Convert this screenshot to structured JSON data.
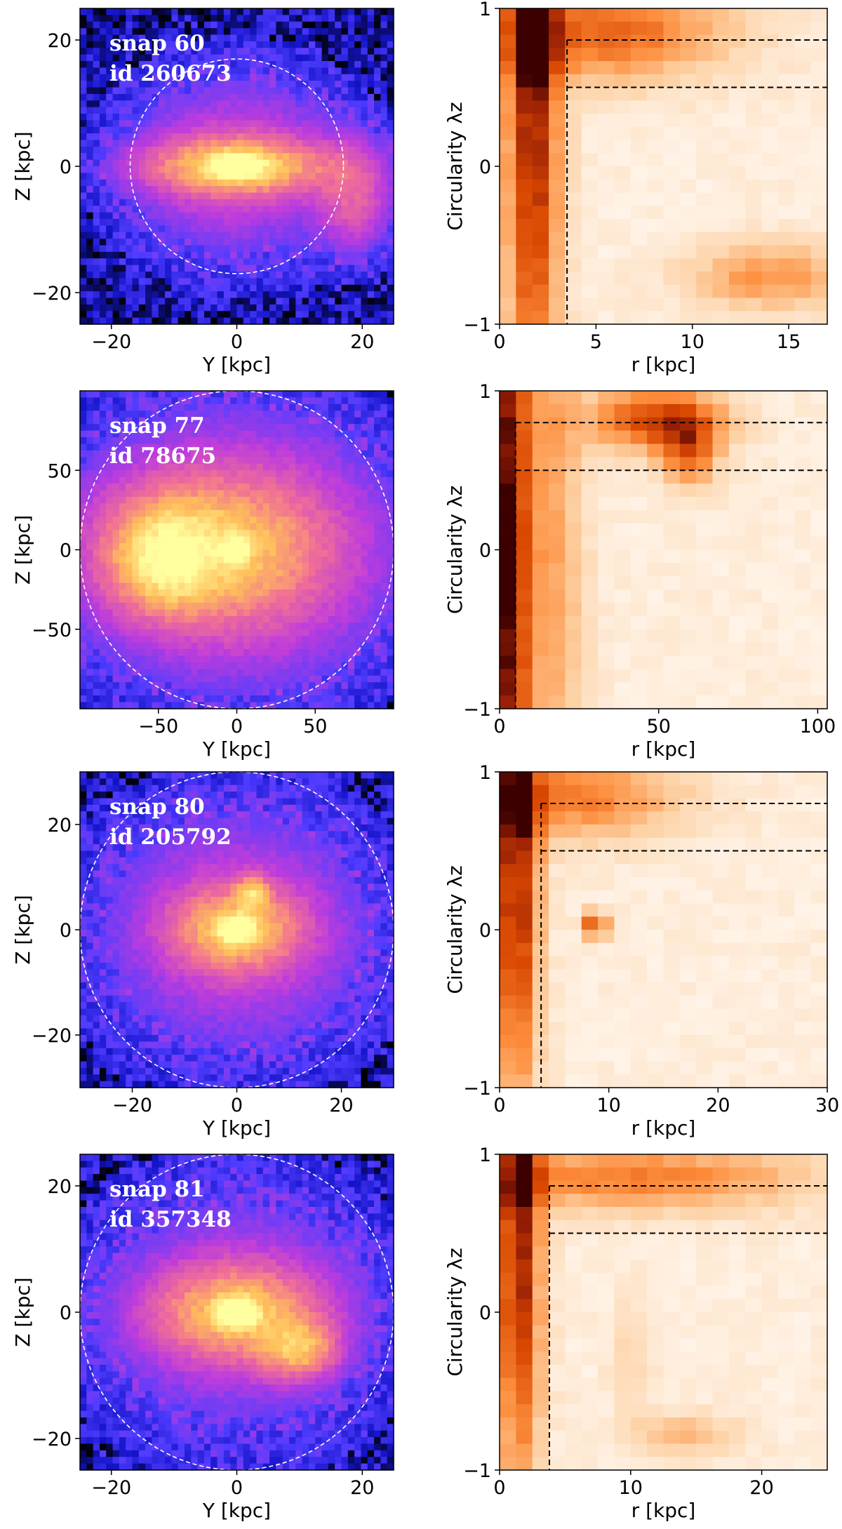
{
  "chart_data": [
    {
      "type": "heatmap",
      "panel": "projection",
      "overlay": [
        "snap 60",
        "id 260673"
      ],
      "xlabel": "Y [kpc]",
      "ylabel": "Z [kpc]",
      "xlim": [
        -25,
        25
      ],
      "ylim": [
        -25,
        25
      ],
      "xticks": [
        -20,
        0,
        20
      ],
      "yticks": [
        -20,
        0,
        20
      ],
      "xtick_labels": [
        "−20",
        "0",
        "20"
      ],
      "ytick_labels": [
        "−20",
        "0",
        "20"
      ],
      "aperture_radius": 17,
      "colormap": "gnuplot2",
      "features": [
        {
          "kind": "core",
          "x": 0,
          "y": 0,
          "sx": 2.5,
          "sy": 1.2,
          "amp": 1.0
        },
        {
          "kind": "disk",
          "x": 0,
          "y": 0,
          "sx": 10,
          "sy": 3,
          "amp": 0.55
        },
        {
          "kind": "halo",
          "x": 0,
          "y": 0,
          "sx": 12,
          "sy": 10,
          "amp": 0.25
        },
        {
          "kind": "stream",
          "x": 19,
          "y": -5,
          "sx": 4,
          "sy": 6,
          "amp": 0.28
        }
      ]
    },
    {
      "type": "heatmap",
      "panel": "circularity",
      "xlabel": "r [kpc]",
      "ylabel": "Circularity λz",
      "xlim": [
        0,
        17
      ],
      "ylim": [
        -1,
        1
      ],
      "xticks": [
        0,
        5,
        10,
        15
      ],
      "yticks": [
        -1,
        0,
        1
      ],
      "xtick_labels": [
        "0",
        "5",
        "10",
        "15"
      ],
      "ytick_labels": [
        "−1",
        "0",
        "1"
      ],
      "r_cut": 3.5,
      "lambda_cuts": [
        0.8,
        0.5
      ],
      "colormap": "Oranges",
      "features": [
        {
          "kind": "bulge",
          "x": 1.7,
          "y": 0.3,
          "sx": 1.0,
          "sy": 1.4,
          "amp": 1.0
        },
        {
          "kind": "disk",
          "x": 5.5,
          "y": 0.85,
          "sx": 4.5,
          "sy": 0.22,
          "amp": 0.7
        },
        {
          "kind": "counter-rotating",
          "x": 14,
          "y": -0.7,
          "sx": 3,
          "sy": 0.15,
          "amp": 0.5
        }
      ]
    },
    {
      "type": "heatmap",
      "panel": "projection",
      "overlay": [
        "snap 77",
        "id 78675"
      ],
      "xlabel": "Y [kpc]",
      "ylabel": "Z [kpc]",
      "xlim": [
        -100,
        100
      ],
      "ylim": [
        -100,
        100
      ],
      "xticks": [
        -50,
        0,
        50
      ],
      "yticks": [
        -50,
        0,
        50
      ],
      "xtick_labels": [
        "−50",
        "0",
        "50"
      ],
      "ytick_labels": [
        "−50",
        "0",
        "50"
      ],
      "aperture_radius": 100,
      "colormap": "gnuplot2",
      "features": [
        {
          "kind": "core",
          "x": 0,
          "y": 0,
          "sx": 5,
          "sy": 5,
          "amp": 1.0
        },
        {
          "kind": "companion",
          "x": -45,
          "y": -5,
          "sx": 20,
          "sy": 20,
          "amp": 0.5
        },
        {
          "kind": "envelope",
          "x": -20,
          "y": 0,
          "sx": 50,
          "sy": 30,
          "amp": 0.45
        },
        {
          "kind": "halo",
          "x": 0,
          "y": 0,
          "sx": 70,
          "sy": 60,
          "amp": 0.3
        }
      ]
    },
    {
      "type": "heatmap",
      "panel": "circularity",
      "xlabel": "r [kpc]",
      "ylabel": "Circularity λz",
      "xlim": [
        0,
        103
      ],
      "ylim": [
        -1,
        1
      ],
      "xticks": [
        0,
        50,
        100
      ],
      "yticks": [
        -1,
        0,
        1
      ],
      "xtick_labels": [
        "0",
        "50",
        "100"
      ],
      "ytick_labels": [
        "−1",
        "0",
        "1"
      ],
      "r_cut": 5,
      "lambda_cuts": [
        0.8,
        0.5
      ],
      "colormap": "Oranges",
      "features": [
        {
          "kind": "bulge",
          "x": 3,
          "y": 0,
          "sx": 4,
          "sy": 2,
          "amp": 1.0
        },
        {
          "kind": "inner",
          "x": 15,
          "y": 0,
          "sx": 8,
          "sy": 1.5,
          "amp": 0.45
        },
        {
          "kind": "disk",
          "x": 50,
          "y": 0.82,
          "sx": 15,
          "sy": 0.15,
          "amp": 0.85
        },
        {
          "kind": "disk-tail",
          "x": 60,
          "y": 0.6,
          "sx": 6,
          "sy": 0.15,
          "amp": 0.6
        }
      ]
    },
    {
      "type": "heatmap",
      "panel": "projection",
      "overlay": [
        "snap 80",
        "id 205792"
      ],
      "xlabel": "Y [kpc]",
      "ylabel": "Z [kpc]",
      "xlim": [
        -30,
        30
      ],
      "ylim": [
        -30,
        30
      ],
      "xticks": [
        -20,
        0,
        20
      ],
      "yticks": [
        -20,
        0,
        20
      ],
      "xtick_labels": [
        "−20",
        "0",
        "20"
      ],
      "ytick_labels": [
        "−20",
        "0",
        "20"
      ],
      "aperture_radius": 30,
      "colormap": "gnuplot2",
      "features": [
        {
          "kind": "core",
          "x": 0,
          "y": 0,
          "sx": 2,
          "sy": 1.5,
          "amp": 1.0
        },
        {
          "kind": "satellite",
          "x": 3,
          "y": 7,
          "sx": 2,
          "sy": 2,
          "amp": 0.45
        },
        {
          "kind": "body",
          "x": 0,
          "y": 0,
          "sx": 8,
          "sy": 5,
          "amp": 0.5
        },
        {
          "kind": "halo",
          "x": 0,
          "y": 0,
          "sx": 18,
          "sy": 16,
          "amp": 0.25
        }
      ]
    },
    {
      "type": "heatmap",
      "panel": "circularity",
      "xlabel": "r [kpc]",
      "ylabel": "Circularity λz",
      "xlim": [
        0,
        30
      ],
      "ylim": [
        -1,
        1
      ],
      "xticks": [
        0,
        10,
        20,
        30
      ],
      "yticks": [
        -1,
        0,
        1
      ],
      "xtick_labels": [
        "0",
        "10",
        "20",
        "30"
      ],
      "ytick_labels": [
        "−1",
        "0",
        "1"
      ],
      "r_cut": 3.8,
      "lambda_cuts": [
        0.8,
        0.5
      ],
      "colormap": "Oranges",
      "features": [
        {
          "kind": "bulge",
          "x": 1.5,
          "y": 0.3,
          "sx": 1.5,
          "sy": 1.0,
          "amp": 1.0
        },
        {
          "kind": "disk",
          "x": 7,
          "y": 0.85,
          "sx": 7,
          "sy": 0.2,
          "amp": 0.6
        },
        {
          "kind": "clump",
          "x": 8.8,
          "y": 0.03,
          "sx": 0.8,
          "sy": 0.06,
          "amp": 0.9
        }
      ]
    },
    {
      "type": "heatmap",
      "panel": "projection",
      "overlay": [
        "snap 81",
        "id 357348"
      ],
      "xlabel": "Y [kpc]",
      "ylabel": "Z [kpc]",
      "xlim": [
        -25,
        25
      ],
      "ylim": [
        -25,
        25
      ],
      "xticks": [
        -20,
        0,
        20
      ],
      "yticks": [
        -20,
        0,
        20
      ],
      "xtick_labels": [
        "−20",
        "0",
        "20"
      ],
      "ytick_labels": [
        "−20",
        "0",
        "20"
      ],
      "aperture_radius": 25,
      "colormap": "gnuplot2",
      "features": [
        {
          "kind": "core",
          "x": 0,
          "y": 0,
          "sx": 2,
          "sy": 1.5,
          "amp": 1.0
        },
        {
          "kind": "tidal-arm",
          "x": 10,
          "y": -6,
          "sx": 4,
          "sy": 3,
          "amp": 0.45
        },
        {
          "kind": "body",
          "x": 0,
          "y": 0,
          "sx": 9,
          "sy": 5,
          "amp": 0.5
        },
        {
          "kind": "halo",
          "x": 0,
          "y": 0,
          "sx": 16,
          "sy": 14,
          "amp": 0.2
        }
      ]
    },
    {
      "type": "heatmap",
      "panel": "circularity",
      "xlabel": "r [kpc]",
      "ylabel": "Circularity λz",
      "xlim": [
        0,
        25
      ],
      "ylim": [
        -1,
        1
      ],
      "xticks": [
        0,
        10,
        20
      ],
      "yticks": [
        -1,
        0,
        1
      ],
      "xtick_labels": [
        "0",
        "10",
        "20"
      ],
      "ytick_labels": [
        "−1",
        "0",
        "1"
      ],
      "r_cut": 3.8,
      "lambda_cuts": [
        0.8,
        0.5
      ],
      "colormap": "Oranges",
      "features": [
        {
          "kind": "bulge",
          "x": 1.5,
          "y": 0.3,
          "sx": 1.2,
          "sy": 1.0,
          "amp": 1.0
        },
        {
          "kind": "disk",
          "x": 10,
          "y": 0.85,
          "sx": 10,
          "sy": 0.15,
          "amp": 0.6
        },
        {
          "kind": "counter-rotating",
          "x": 14,
          "y": -0.78,
          "sx": 3,
          "sy": 0.1,
          "amp": 0.35
        },
        {
          "kind": "bridge",
          "x": 10,
          "y": -0.3,
          "sx": 1,
          "sy": 0.25,
          "amp": 0.2
        }
      ]
    }
  ]
}
